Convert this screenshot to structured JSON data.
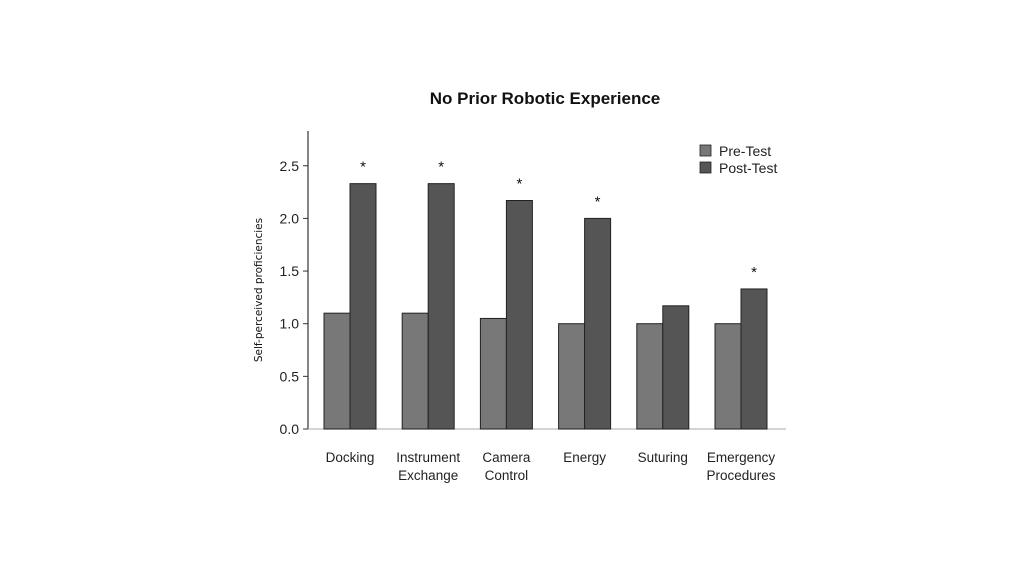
{
  "chart_data": {
    "type": "bar",
    "title": "No Prior Robotic Experience",
    "ylabel": "Self-perceived proficiencies",
    "xlabel": "",
    "ylim": [
      0,
      2.8
    ],
    "yticks": [
      "0.0",
      "0.5",
      "1.0",
      "1.5",
      "2.0",
      "2.5"
    ],
    "categories": [
      [
        "Docking"
      ],
      [
        "Instrument",
        "Exchange"
      ],
      [
        "Camera",
        "Control"
      ],
      [
        "Energy"
      ],
      [
        "Suturing"
      ],
      [
        "Emergency",
        "Procedures"
      ]
    ],
    "series": [
      {
        "name": "Pre-Test",
        "color": "#787878",
        "values": [
          1.1,
          1.1,
          1.05,
          1.0,
          1.0,
          1.0
        ]
      },
      {
        "name": "Post-Test",
        "color": "#555555",
        "values": [
          2.33,
          2.33,
          2.17,
          2.0,
          1.17,
          1.33
        ]
      }
    ],
    "significance": [
      "*",
      "*",
      "*",
      "*",
      "",
      "*"
    ],
    "legend_position": "top-right",
    "grid": false
  }
}
